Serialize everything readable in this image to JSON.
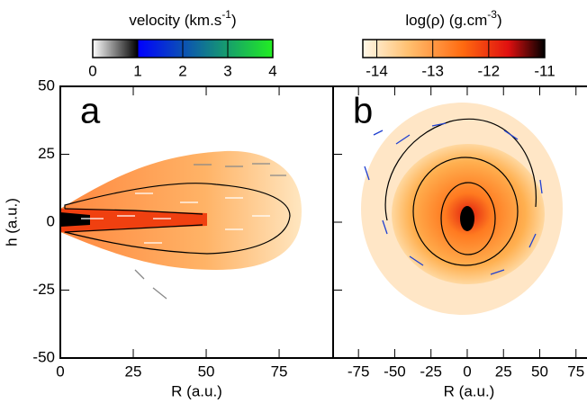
{
  "chart_data": [
    {
      "type": "colorbar",
      "title": {
        "text": "velocity (km.s",
        "sup": "-1",
        "end": ")"
      },
      "xlim": [
        0,
        4
      ],
      "xticks": [
        0,
        1,
        2,
        3,
        4
      ]
    },
    {
      "type": "colorbar",
      "title": {
        "text": "log(ρ) (g.cm",
        "sup": "-3",
        "end": ")"
      },
      "xlim": [
        -14.25,
        -11
      ],
      "xticks": [
        -14,
        -13,
        -12,
        -11
      ]
    },
    {
      "type": "panel",
      "label": "a",
      "xlabel": "R (a.u.)",
      "ylabel": "h (a.u.)",
      "xlim": [
        0,
        93.5
      ],
      "xticks": [
        0,
        25,
        50,
        75
      ],
      "ylim": [
        -50,
        50
      ],
      "yticks": [
        50,
        25,
        0,
        -25,
        -50
      ],
      "ytick_labels": true
    },
    {
      "type": "panel",
      "label": "b",
      "xlabel": "R (a.u.)",
      "xlim": [
        -92.5,
        82.6
      ],
      "xticks": [
        -75,
        -50,
        -25,
        0,
        25,
        50,
        75
      ],
      "ylim": [
        -50,
        50
      ],
      "yticks": [
        50,
        25,
        0,
        -25,
        -50
      ],
      "ytick_labels": false
    }
  ]
}
